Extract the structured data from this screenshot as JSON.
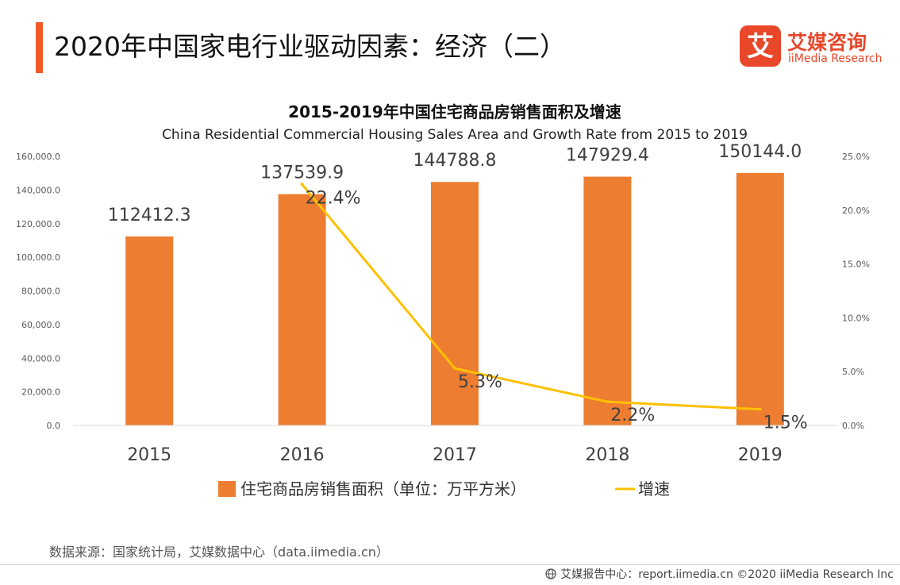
{
  "header": {
    "title": "2020年中国家电行业驱动因素：经济（二）"
  },
  "brand": {
    "name_cn": "艾媒咨询",
    "name_en": "iiMedia Research",
    "logo_glyph": "艾",
    "color": "#e8472a"
  },
  "chart_data": {
    "type": "bar",
    "title": "2015-2019年中国住宅商品房销售面积及增速",
    "subtitle": "China Residential Commercial Housing Sales Area and Growth Rate from 2015 to 2019",
    "categories": [
      "2015",
      "2016",
      "2017",
      "2018",
      "2019"
    ],
    "series": [
      {
        "name": "住宅商品房销售面积（单位：万平方米）",
        "type": "bar",
        "axis": "left",
        "color": "#ed7d31",
        "values": [
          112412.3,
          137539.9,
          144788.8,
          147929.4,
          150144.0
        ],
        "labels": [
          "112412.3",
          "137539.9",
          "144788.8",
          "147929.4",
          "150144.0"
        ]
      },
      {
        "name": "增速",
        "type": "line",
        "axis": "right",
        "color": "#ffc000",
        "x": [
          "2016",
          "2017",
          "2018",
          "2019"
        ],
        "values": [
          22.4,
          5.3,
          2.2,
          1.5
        ],
        "labels": [
          "22.4%",
          "5.3%",
          "2.2%",
          "1.5%"
        ]
      }
    ],
    "y_left": {
      "ylim": [
        0,
        160000
      ],
      "ticks": [
        "0.0",
        "20,000.0",
        "40,000.0",
        "60,000.0",
        "80,000.0",
        "100,000.0",
        "120,000.0",
        "140,000.0",
        "160,000.0"
      ]
    },
    "y_right": {
      "ylim": [
        0,
        25
      ],
      "ticks": [
        "0.0%",
        "5.0%",
        "10.0%",
        "15.0%",
        "20.0%",
        "25.0%"
      ]
    },
    "grid": false,
    "legend": "bottom"
  },
  "footer": {
    "source": "数据来源：国家统计局，艾媒数据中心（data.iimedia.cn）",
    "copyright": "艾媒报告中心：report.iimedia.cn  ©2020  iiMedia Research  Inc"
  }
}
